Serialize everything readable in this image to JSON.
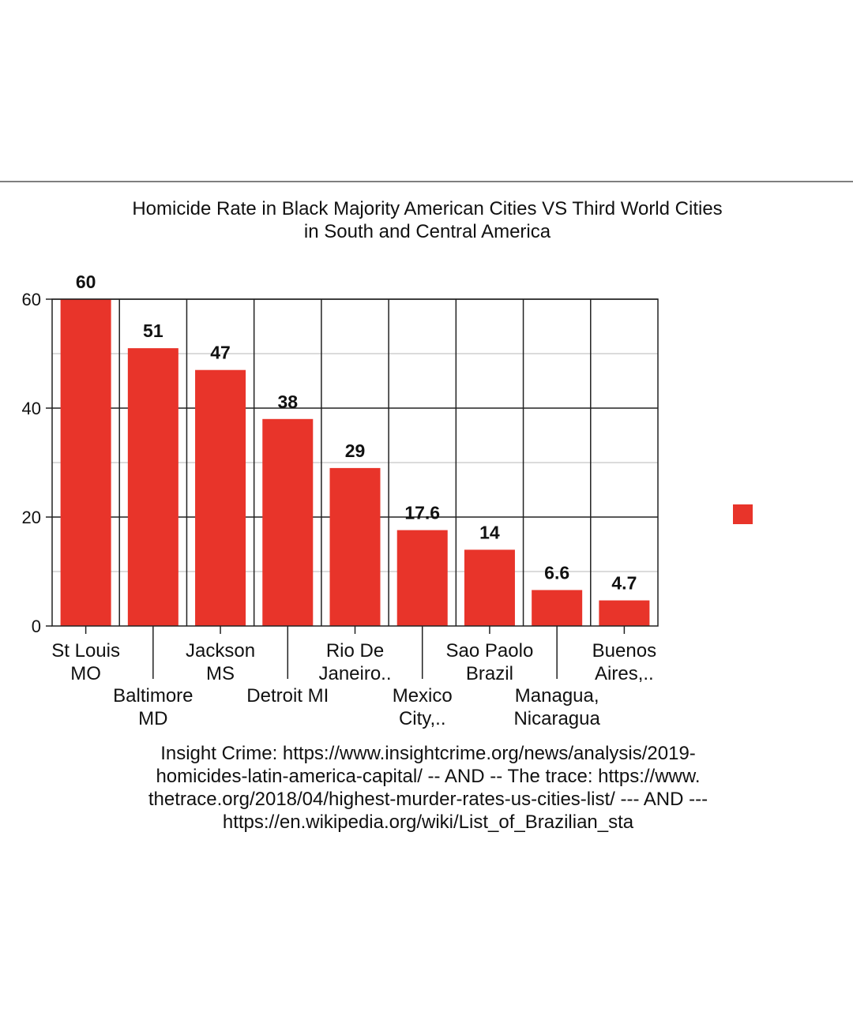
{
  "chart_data": {
    "type": "bar",
    "title_lines": [
      "Homicide Rate in Black Majority American Cities VS Third World Cities",
      "in South and Central America"
    ],
    "categories": [
      [
        "St Louis",
        "MO"
      ],
      [
        "Baltimore",
        "MD"
      ],
      [
        "Jackson",
        "MS"
      ],
      [
        "Detroit MI"
      ],
      [
        "Rio De",
        "Janeiro.."
      ],
      [
        "Mexico",
        "City,.."
      ],
      [
        "Sao Paolo",
        "Brazil"
      ],
      [
        "Managua,",
        "Nicaragua"
      ],
      [
        "Buenos",
        "Aires,.."
      ]
    ],
    "values": [
      60,
      51,
      47,
      38,
      29,
      17.6,
      14,
      6.6,
      4.7
    ],
    "value_labels": [
      "60",
      "51",
      "47",
      "38",
      "29",
      "17.6",
      "14",
      "6.6",
      "4.7"
    ],
    "ylim": [
      0,
      60
    ],
    "yticks": [
      0,
      20,
      40,
      60
    ],
    "xlabel": "",
    "ylabel": "",
    "grid": true,
    "bar_color": "#e8342a",
    "legend_swatch_color": "#e8342a",
    "source_lines": [
      "Insight Crime: https://www.insightcrime.org/news/analysis/2019-",
      "homicides-latin-america-capital/ -- AND -- The trace: https://www.",
      "thetrace.org/2018/04/highest-murder-rates-us-cities-list/ --- AND ---",
      "https://en.wikipedia.org/wiki/List_of_Brazilian_sta"
    ]
  }
}
